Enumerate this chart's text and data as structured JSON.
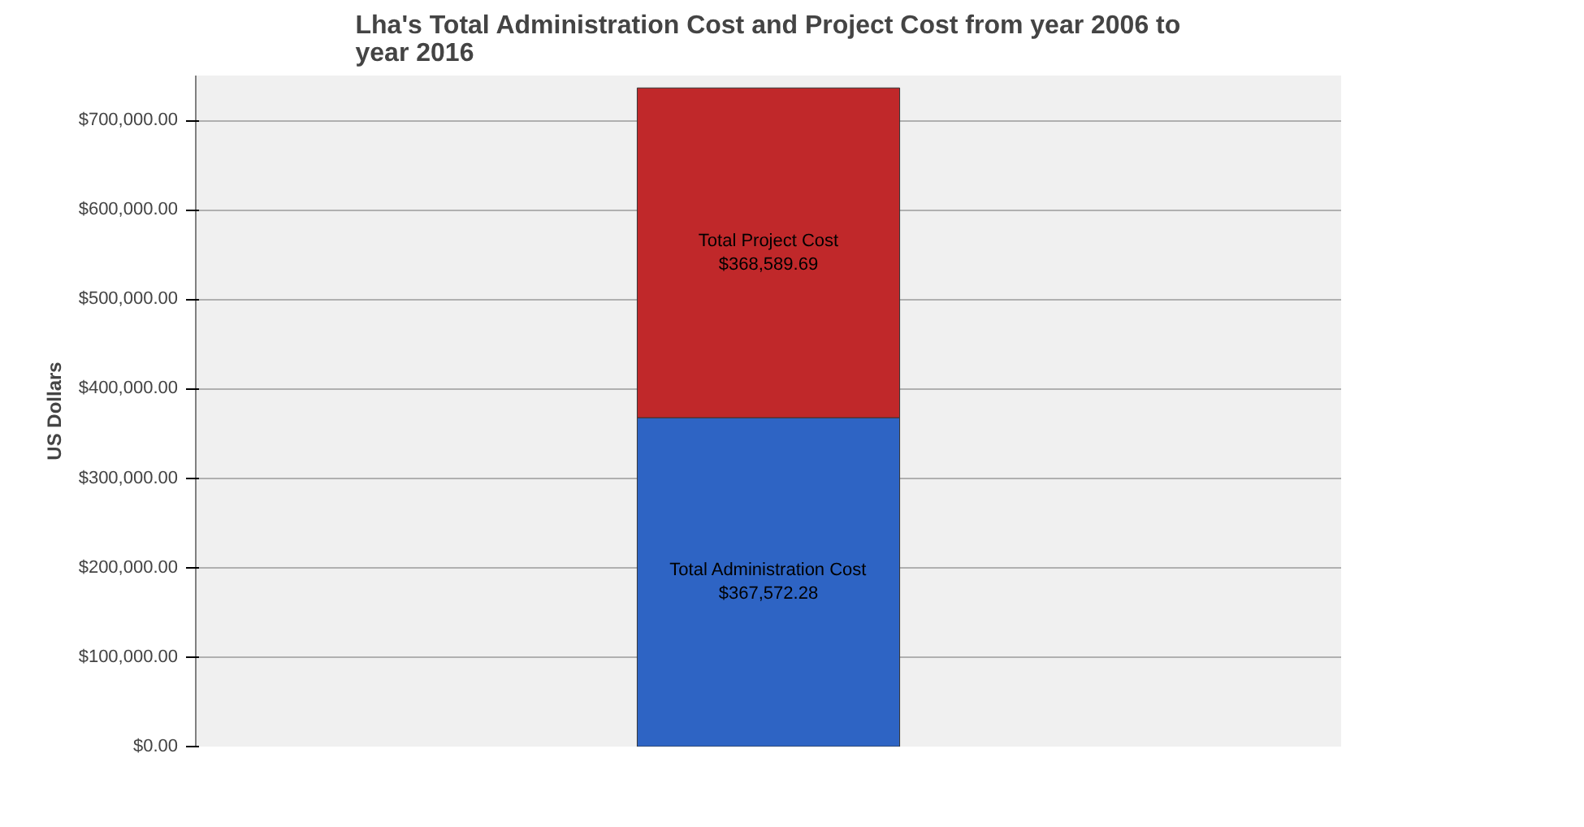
{
  "chart_data": {
    "type": "bar",
    "title": "Lha's Total Administration Cost and Project Cost from year 2006 to\nyear 2016",
    "ylabel": "US Dollars",
    "categories": [
      null
    ],
    "stacked": true,
    "series": [
      {
        "name": "Total Administration Cost",
        "color": "#2e64c4",
        "values": [
          367572.28
        ],
        "value_labels": [
          "$367,572.28"
        ]
      },
      {
        "name": "Total Project Cost",
        "color": "#c0282a",
        "values": [
          368589.69
        ],
        "value_labels": [
          "$368,589.69"
        ]
      }
    ],
    "ylim": [
      0,
      750000
    ],
    "yticks": [
      {
        "value": 0,
        "label": "$0.00"
      },
      {
        "value": 100000,
        "label": "$100,000.00"
      },
      {
        "value": 200000,
        "label": "$200,000.00"
      },
      {
        "value": 300000,
        "label": "$300,000.00"
      },
      {
        "value": 400000,
        "label": "$400,000.00"
      },
      {
        "value": 500000,
        "label": "$500,000.00"
      },
      {
        "value": 600000,
        "label": "$600,000.00"
      },
      {
        "value": 700000,
        "label": "$700,000.00"
      }
    ],
    "grid": "y"
  }
}
